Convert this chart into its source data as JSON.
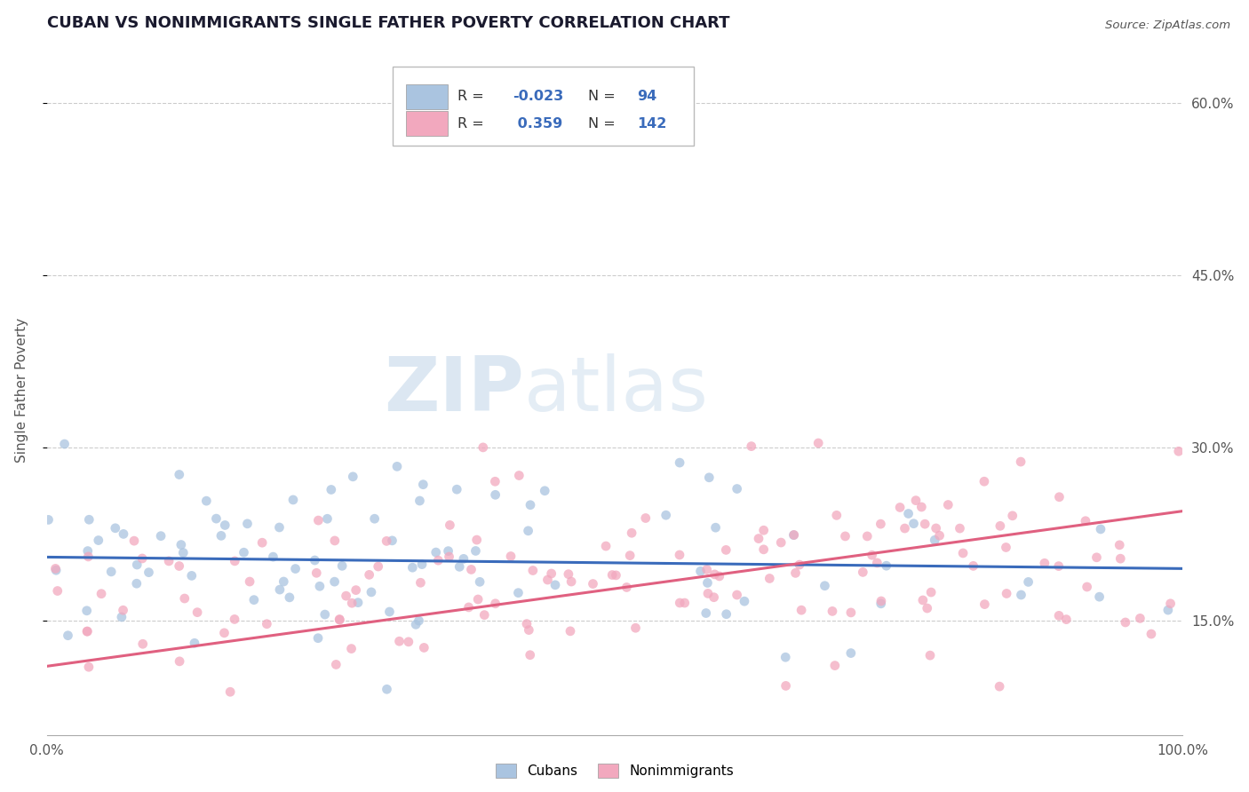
{
  "title": "CUBAN VS NONIMMIGRANTS SINGLE FATHER POVERTY CORRELATION CHART",
  "source_text": "Source: ZipAtlas.com",
  "ylabel": "Single Father Poverty",
  "cubans_R": -0.023,
  "cubans_N": 94,
  "nonimm_R": 0.359,
  "nonimm_N": 142,
  "xlim": [
    0.0,
    100.0
  ],
  "ylim": [
    5.0,
    65.0
  ],
  "yticks": [
    15.0,
    30.0,
    45.0,
    60.0
  ],
  "xticks": [
    0.0,
    20.0,
    40.0,
    60.0,
    80.0,
    100.0
  ],
  "xtick_labels": [
    "0.0%",
    "",
    "",
    "",
    "",
    "100.0%"
  ],
  "ytick_labels": [
    "15.0%",
    "30.0%",
    "45.0%",
    "60.0%"
  ],
  "cuban_color": "#aac4e0",
  "nonimm_color": "#f2a8be",
  "cuban_line_color": "#3a6bbb",
  "nonimm_line_color": "#e06080",
  "legend_cuban_facecolor": "#aac4e0",
  "legend_nonimm_facecolor": "#f2a8be",
  "watermark_zip": "ZIP",
  "watermark_atlas": "atlas",
  "background_color": "#ffffff",
  "grid_color": "#cccccc",
  "title_color": "#1a1a2e",
  "axis_label_color": "#555555",
  "legend_label_cuban": "Cubans",
  "legend_label_nonimm": "Nonimmigrants",
  "cuban_line_y0": 20.5,
  "cuban_line_y100": 19.5,
  "nonimm_line_y0": 11.0,
  "nonimm_line_y100": 24.5
}
